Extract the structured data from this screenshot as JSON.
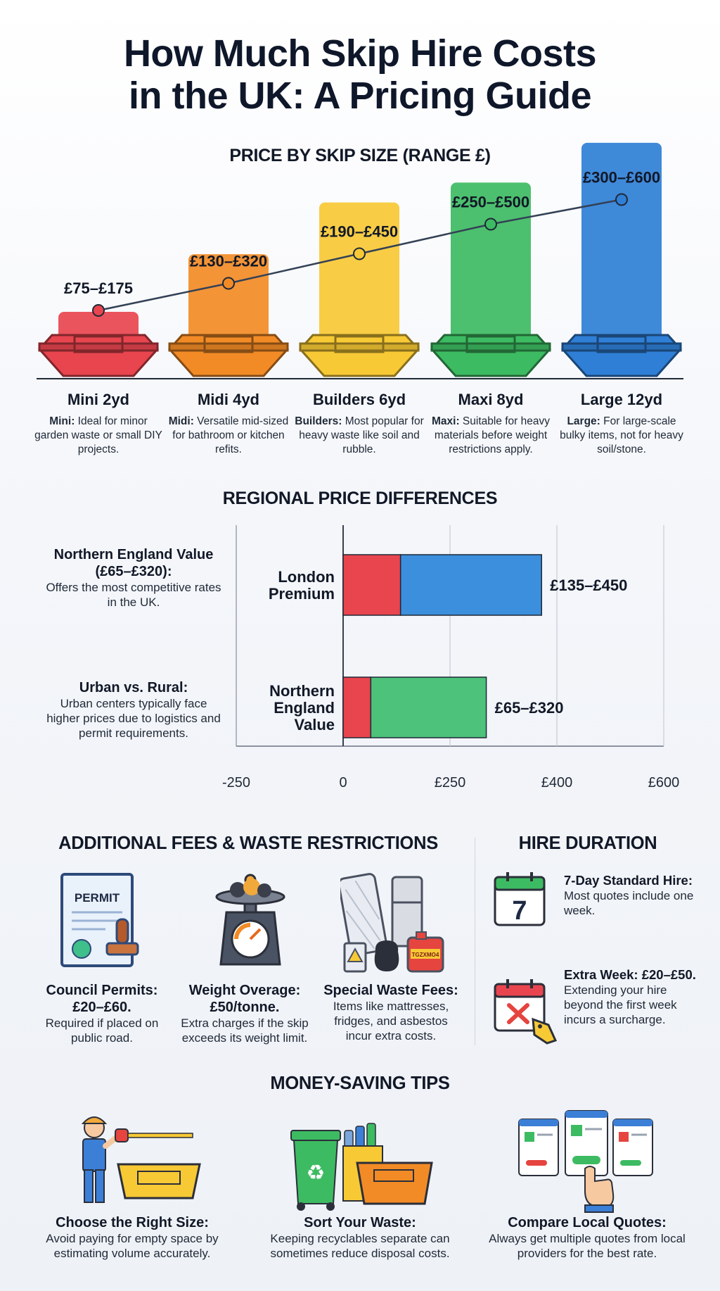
{
  "title_line1": "How Much Skip Hire Costs",
  "title_line2": "in the UK: A Pricing Guide",
  "sizes_section": {
    "heading": "PRICE BY SKIP SIZE (RANGE £)",
    "items": [
      {
        "name": "Mini 2yd",
        "range": "£75–£175",
        "low": 75,
        "high": 175,
        "color": "#e8454f",
        "desc_bold": "Mini:",
        "desc": " Ideal for minor garden waste or small DIY projects."
      },
      {
        "name": "Midi 4yd",
        "range": "£130–£320",
        "low": 130,
        "high": 320,
        "color": "#f28b26",
        "desc_bold": "Midi:",
        "desc": " Versatile mid-sized for bathroom or kitchen refits."
      },
      {
        "name": "Builders 6yd",
        "range": "£190–£450",
        "low": 190,
        "high": 450,
        "color": "#f7c935",
        "desc_bold": "Builders:",
        "desc": " Most popular for heavy waste like soil and rubble."
      },
      {
        "name": "Maxi 8yd",
        "range": "£250–£500",
        "low": 250,
        "high": 500,
        "color": "#3dbb62",
        "desc_bold": "Maxi:",
        "desc": " Suitable for heavy materials before weight restrictions apply."
      },
      {
        "name": "Large 12yd",
        "range": "£300–£600",
        "low": 300,
        "high": 600,
        "color": "#2f7fd6",
        "desc_bold": "Large:",
        "desc": " For large-scale bulky items, not for heavy soil/stone."
      }
    ]
  },
  "regional_section": {
    "heading": "REGIONAL PRICE DIFFERENCES",
    "notes": [
      {
        "heading": "Northern England Value (£65–£320):",
        "text": "Offers the most competitive rates in the UK."
      },
      {
        "heading": "Urban vs. Rural:",
        "text": "Urban centers typically face higher prices due to logistics and permit requirements."
      }
    ]
  },
  "chart_data": [
    {
      "type": "bar",
      "title": "PRICE BY SKIP SIZE (RANGE £)",
      "categories": [
        "Mini 2yd",
        "Midi 4yd",
        "Builders 6yd",
        "Maxi 8yd",
        "Large 12yd"
      ],
      "series": [
        {
          "name": "low",
          "values": [
            75,
            130,
            190,
            250,
            300
          ]
        },
        {
          "name": "high",
          "values": [
            175,
            320,
            450,
            500,
            600
          ]
        }
      ],
      "data_labels": [
        "£75–£175",
        "£130–£320",
        "£190–£450",
        "£250–£500",
        "£300–£600"
      ]
    },
    {
      "type": "bar",
      "orientation": "horizontal",
      "title": "REGIONAL PRICE DIFFERENCES",
      "categories": [
        "London Premium",
        "Northern England Value"
      ],
      "category_lines": [
        [
          "London",
          "Premium"
        ],
        [
          "Northern",
          "England",
          "Value"
        ]
      ],
      "low": [
        135,
        65
      ],
      "high": [
        450,
        320
      ],
      "data_labels": [
        "£135–£450",
        "£65–£320"
      ],
      "colors": {
        "low": "#e8454f",
        "london": "#3b8fdc",
        "north": "#4cc27a"
      },
      "x_ticks": [
        -250,
        0,
        250,
        400,
        600
      ],
      "x_tick_labels": [
        "-250",
        "0",
        "£250",
        "£400",
        "£600"
      ],
      "grid": true
    }
  ],
  "fees_section": {
    "heading": "ADDITIONAL FEES & WASTE RESTRICTIONS",
    "permit_icon_text": "PERMIT",
    "jerrycan_text": "TGZXMO4",
    "cards": [
      {
        "heading1": "Council Permits:",
        "heading2": "£20–£60.",
        "text": "Required if placed on public road."
      },
      {
        "heading1": "Weight Overage:",
        "heading2": "£50/tonne.",
        "text": "Extra charges if the skip exceeds its weight limit."
      },
      {
        "heading1": "Special Waste Fees:",
        "heading2": "",
        "text": "Items like mattresses, fridges, and asbestos incur extra costs."
      }
    ]
  },
  "duration_section": {
    "heading": "HIRE DURATION",
    "calendar_number": "7",
    "items": [
      {
        "bold": "7-Day Standard Hire:",
        "text": " Most quotes include one week."
      },
      {
        "bold": "Extra Week: £20–£50.",
        "text": "Extending your hire beyond the first week incurs a surcharge."
      }
    ]
  },
  "tips_section": {
    "heading": "MONEY-SAVING TIPS",
    "tips": [
      {
        "heading": "Choose the Right Size:",
        "text": "Avoid paying for empty space by estimating volume accurately."
      },
      {
        "heading": "Sort Your Waste:",
        "text": "Keeping recyclables separate can sometimes reduce disposal costs."
      },
      {
        "heading": "Compare Local Quotes:",
        "text": "Always get multiple quotes from local providers for the best rate."
      }
    ]
  }
}
